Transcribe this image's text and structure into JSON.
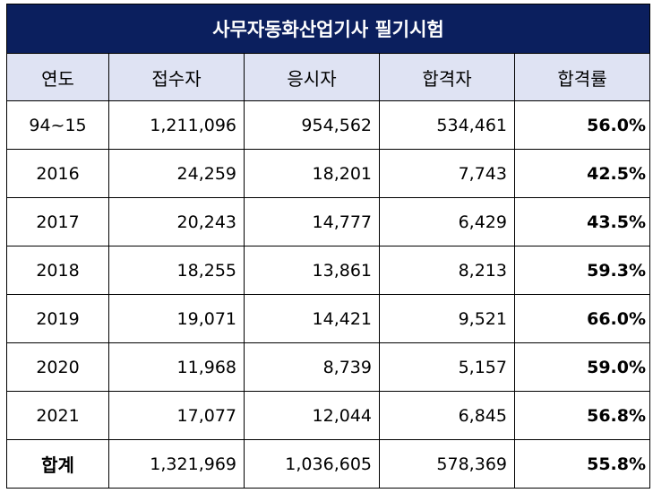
{
  "title": "사무자동화산업기사 필기시험",
  "headers": [
    "연도",
    "접수자",
    "응시자",
    "합격자",
    "합격률"
  ],
  "rows": [
    {
      "year": "94~15",
      "applicants": "1,211,096",
      "examinees": "954,562",
      "passers": "534,461",
      "rate": "56.0%"
    },
    {
      "year": "2016",
      "applicants": "24,259",
      "examinees": "18,201",
      "passers": "7,743",
      "rate": "42.5%"
    },
    {
      "year": "2017",
      "applicants": "20,243",
      "examinees": "14,777",
      "passers": "6,429",
      "rate": "43.5%"
    },
    {
      "year": "2018",
      "applicants": "18,255",
      "examinees": "13,861",
      "passers": "8,213",
      "rate": "59.3%"
    },
    {
      "year": "2019",
      "applicants": "19,071",
      "examinees": "14,421",
      "passers": "9,521",
      "rate": "66.0%"
    },
    {
      "year": "2020",
      "applicants": "11,968",
      "examinees": "8,739",
      "passers": "5,157",
      "rate": "59.0%"
    },
    {
      "year": "2021",
      "applicants": "17,077",
      "examinees": "12,044",
      "passers": "6,845",
      "rate": "56.8%"
    }
  ],
  "total": {
    "year": "합계",
    "applicants": "1,321,969",
    "examinees": "1,036,605",
    "passers": "578,369",
    "rate": "55.8%"
  }
}
